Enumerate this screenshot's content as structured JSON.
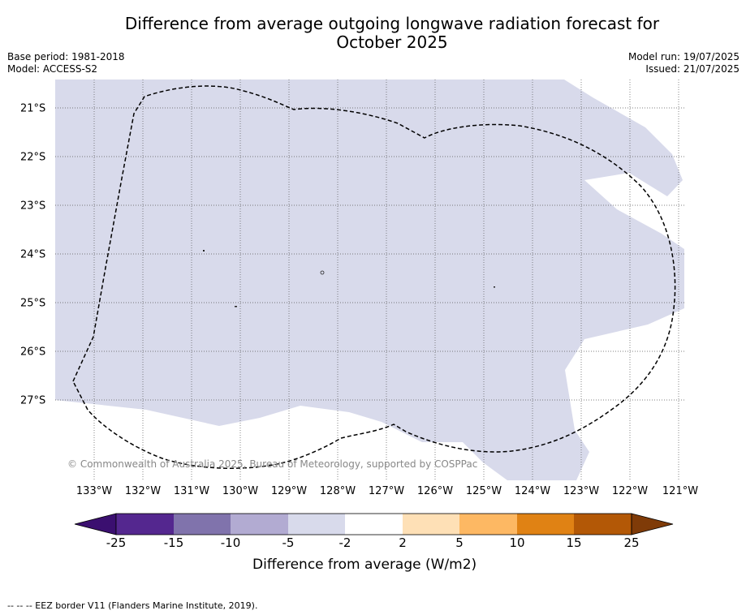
{
  "title_line1": "Difference from average outgoing longwave radiation forecast for",
  "title_line2": "October 2025",
  "base_period": "Base period: 1981-2018",
  "model": "Model: ACCESS-S2",
  "model_run": "Model run: 19/07/2025",
  "issued": "Issued: 21/07/2025",
  "longitude_labels": [
    "133°W",
    "132°W",
    "131°W",
    "130°W",
    "129°W",
    "128°W",
    "127°W",
    "126°W",
    "125°W",
    "124°W",
    "123°W",
    "122°W",
    "121°W"
  ],
  "latitude_labels": [
    "21°S",
    "22°S",
    "23°S",
    "24°S",
    "25°S",
    "26°S",
    "27°S"
  ],
  "credit": "© Commonwealth of Australia 2025, Bureau of Meteorology, supported by COSPPac",
  "colorbar": {
    "ticks": [
      "-25",
      "-15",
      "-10",
      "-5",
      "-2",
      "2",
      "5",
      "10",
      "15",
      "25"
    ],
    "colors": [
      "#3b0f70",
      "#54278f",
      "#8073ac",
      "#b2abd2",
      "#d8daeb",
      "#ffffff",
      "#fee0b6",
      "#fdb863",
      "#e08214",
      "#b35806",
      "#7f3b08"
    ],
    "label": "Difference from average (W/m2)"
  },
  "footnote": "--  --  -- EEZ border V11 (Flanders Marine Institute, 2019).",
  "map_fill_color": "#d8daeb"
}
